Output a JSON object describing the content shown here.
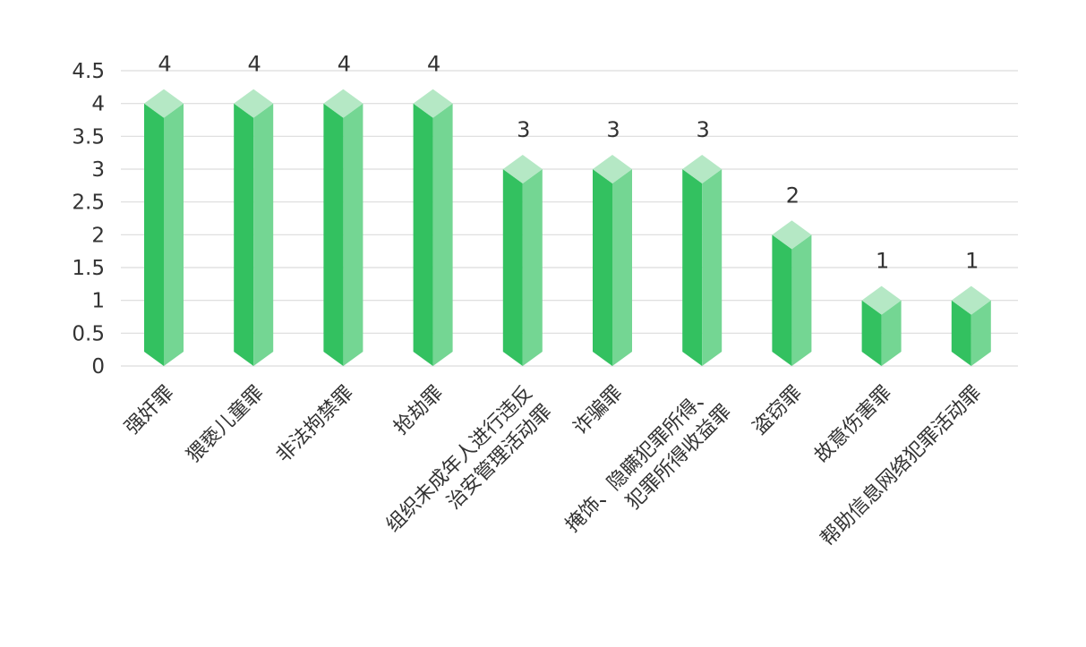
{
  "chart_data": {
    "type": "bar",
    "categories": [
      [
        "强奸罪"
      ],
      [
        "猥亵儿童罪"
      ],
      [
        "非法拘禁罪"
      ],
      [
        "抢劫罪"
      ],
      [
        "组织未成年人进行违反",
        "治安管理活动罪"
      ],
      [
        "诈骗罪"
      ],
      [
        "掩饰、隐瞒犯罪所得、",
        "犯罪所得收益罪"
      ],
      [
        "盗窃罪"
      ],
      [
        "故意伤害罪"
      ],
      [
        "帮助信息网络犯罪活动罪"
      ]
    ],
    "values": [
      4,
      4,
      4,
      4,
      3,
      3,
      3,
      2,
      1,
      1
    ],
    "value_labels": [
      "4",
      "4",
      "4",
      "4",
      "3",
      "3",
      "3",
      "2",
      "1",
      "1"
    ],
    "y_ticks": [
      "0",
      "0.5",
      "1",
      "1.5",
      "2",
      "2.5",
      "3",
      "3.5",
      "4",
      "4.5"
    ],
    "ylim": [
      0,
      4.5
    ],
    "grid": true,
    "legend": "none",
    "colors": {
      "bar_front": "#33c160",
      "bar_side": "#74d693",
      "bar_top": "#b5e8c5",
      "grid": "#dcdcdc",
      "text": "#333333"
    }
  }
}
